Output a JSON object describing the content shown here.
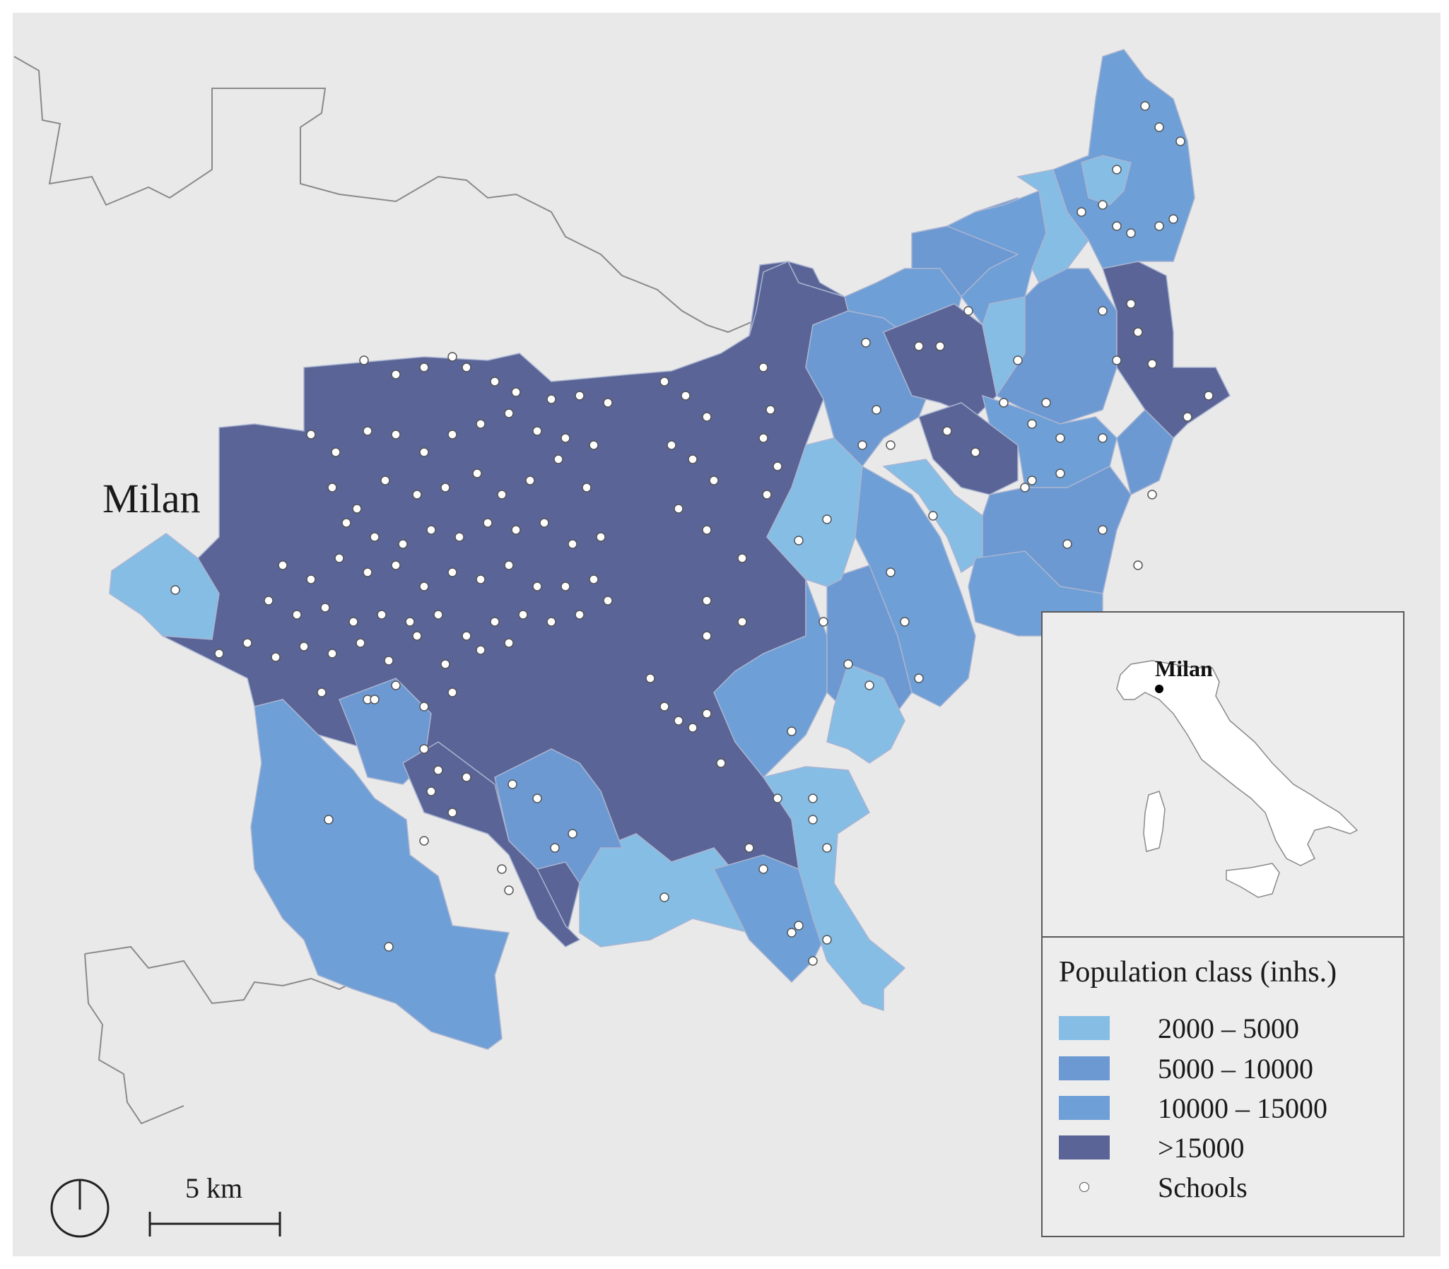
{
  "map": {
    "city_label": "Milan",
    "colors": {
      "background": "#e9e9ea",
      "class_2000_5000": "#86bde5",
      "class_5000_10000": "#6d99d3",
      "class_10000_15000": "#6e9fd6",
      "class_over_15000": "#5a6496",
      "school_fill": "#ffffff",
      "boundary": "#8a8a8a"
    }
  },
  "inset": {
    "city_label": "Milan"
  },
  "legend": {
    "title": "Population class (inhs.)",
    "items": [
      {
        "label": "2000 – 5000",
        "color": "#86bde5"
      },
      {
        "label": "5000 – 10000",
        "color": "#6d99d3"
      },
      {
        "label": "10000 – 15000",
        "color": "#6e9fd6"
      },
      {
        "label": ">15000",
        "color": "#5a6496"
      }
    ],
    "schools_label": "Schools"
  },
  "scale_bar": {
    "label": "5 km"
  },
  "north_arrow": {
    "icon": "north-arrow-icon"
  }
}
